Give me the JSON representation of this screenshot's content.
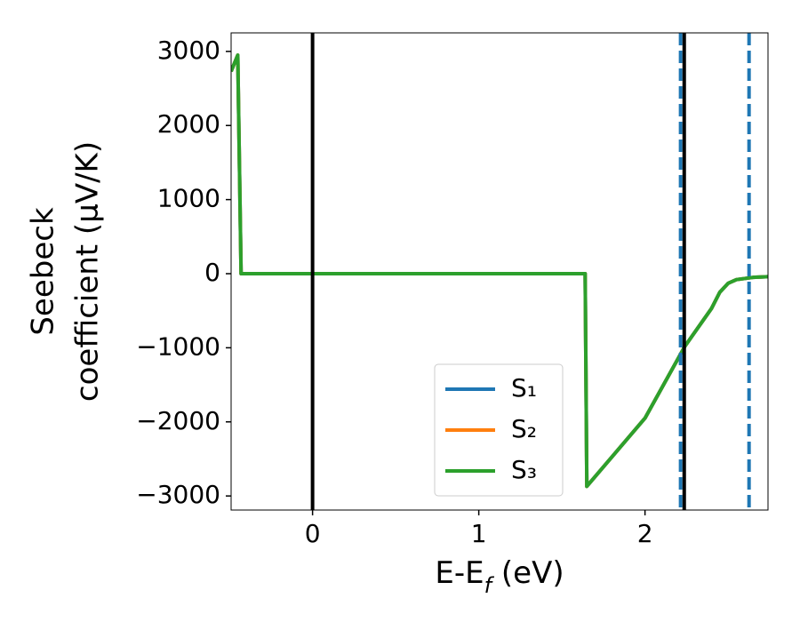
{
  "chart_data": {
    "type": "line",
    "ylabel": [
      "Seebeck",
      "coefficient  (μV/K)"
    ],
    "xlabel": [
      "E-E",
      "f",
      " (eV)"
    ],
    "xlim": [
      -0.49,
      2.74
    ],
    "ylim": [
      -3190,
      3250
    ],
    "xticks": [
      0,
      1,
      2
    ],
    "yticks": [
      {
        "value": -3000,
        "label": "−3000"
      },
      {
        "value": -2000,
        "label": "−2000"
      },
      {
        "value": -1000,
        "label": "−1000"
      },
      0,
      1000,
      2000,
      3000
    ],
    "series": [
      {
        "name": "S₁",
        "color": "#1f77b4",
        "x": [
          -0.49,
          -0.45,
          -0.43,
          1.64,
          1.65,
          2.0,
          2.24,
          2.4,
          2.45,
          2.5,
          2.55,
          2.65,
          2.74
        ],
        "values": [
          2730,
          2950,
          0,
          0,
          -2870,
          -1950,
          -980,
          -470,
          -250,
          -130,
          -80,
          -50,
          -40
        ]
      },
      {
        "name": "S₂",
        "color": "#ff7f0e",
        "x": [
          -0.49,
          -0.45,
          -0.43,
          1.64,
          1.65,
          2.0,
          2.24,
          2.4,
          2.45,
          2.5,
          2.55,
          2.65,
          2.74
        ],
        "values": [
          2730,
          2950,
          0,
          0,
          -2870,
          -1950,
          -980,
          -470,
          -250,
          -130,
          -80,
          -50,
          -40
        ]
      },
      {
        "name": "S₃",
        "color": "#2ca02c",
        "x": [
          -0.49,
          -0.45,
          -0.43,
          1.64,
          1.65,
          2.0,
          2.24,
          2.4,
          2.45,
          2.5,
          2.55,
          2.65,
          2.74
        ],
        "values": [
          2730,
          2950,
          0,
          0,
          -2870,
          -1950,
          -980,
          -470,
          -250,
          -130,
          -80,
          -50,
          -40
        ]
      }
    ],
    "vlines": [
      {
        "x": 0,
        "color": "#000000",
        "dashed": false
      },
      {
        "x": 2.214,
        "color": "#1f77b4",
        "dashed": true
      },
      {
        "x": 2.236,
        "color": "#000000",
        "dashed": false
      },
      {
        "x": 2.626,
        "color": "#1f77b4",
        "dashed": true
      }
    ],
    "legend": "lower right"
  }
}
